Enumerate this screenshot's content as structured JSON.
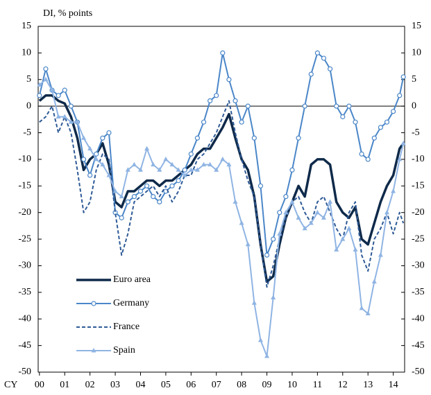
{
  "chart_data": {
    "type": "line",
    "y_label": "DI, % points",
    "x_label": "CY",
    "x": [
      2000,
      2000.25,
      2000.5,
      2000.75,
      2001,
      2001.25,
      2001.5,
      2001.75,
      2002,
      2002.25,
      2002.5,
      2002.75,
      2003,
      2003.25,
      2003.5,
      2003.75,
      2004,
      2004.25,
      2004.5,
      2004.75,
      2005,
      2005.25,
      2005.5,
      2005.75,
      2006,
      2006.25,
      2006.5,
      2006.75,
      2007,
      2007.25,
      2007.5,
      2007.75,
      2008,
      2008.25,
      2008.5,
      2008.75,
      2009,
      2009.25,
      2009.5,
      2009.75,
      2010,
      2010.25,
      2010.5,
      2010.75,
      2011,
      2011.25,
      2011.5,
      2011.75,
      2012,
      2012.25,
      2012.5,
      2012.75,
      2013,
      2013.25,
      2013.5,
      2013.75,
      2014,
      2014.25,
      2014.4
    ],
    "series": [
      {
        "name": "Euro area",
        "color": "#0f2a4a",
        "style": "solid",
        "marker": "none",
        "values": [
          1,
          2,
          2,
          1,
          0.5,
          -2,
          -6,
          -12,
          -10,
          -9,
          -7,
          -11,
          -18,
          -19,
          -16,
          -16,
          -15,
          -14,
          -14,
          -15,
          -14,
          -14,
          -13,
          -12,
          -11,
          -9,
          -8,
          -8,
          -6,
          -4,
          -1.5,
          -6,
          -10,
          -12,
          -17,
          -26,
          -33,
          -32,
          -26,
          -21,
          -18,
          -15,
          -17,
          -11,
          -10,
          -10,
          -11,
          -18,
          -20,
          -21,
          -19,
          -25,
          -26,
          -22,
          -18,
          -15,
          -13,
          -8,
          -7
        ]
      },
      {
        "name": "Germany",
        "color": "#4a86c8",
        "style": "solid",
        "marker": "circle",
        "values": [
          2,
          7,
          3,
          2,
          3,
          0,
          -3,
          -10,
          -13,
          -9,
          -6,
          -5,
          -20,
          -21,
          -18,
          -17,
          -16,
          -15,
          -17,
          -18,
          -16,
          -15,
          -14,
          -12,
          -9,
          -6,
          -3,
          1,
          2,
          10,
          5,
          1,
          -3,
          0,
          -6,
          -15,
          -28,
          -25,
          -20,
          -17,
          -12,
          -6,
          0,
          6,
          10,
          9,
          7,
          0,
          -2,
          0,
          -3,
          -9,
          -10,
          -6,
          -4,
          -3,
          -1,
          2,
          5.5
        ]
      },
      {
        "name": "France",
        "color": "#2e5a96",
        "style": "dashed",
        "marker": "none",
        "values": [
          -3,
          -2,
          0,
          -5,
          -2,
          -5,
          -12,
          -20,
          -18,
          -12,
          -9,
          -10,
          -20,
          -28,
          -24,
          -18,
          -17,
          -16,
          -15,
          -17,
          -15,
          -18,
          -16,
          -13,
          -13,
          -10,
          -9,
          -7,
          -5,
          -2,
          1,
          -5,
          -10,
          -14,
          -17,
          -26,
          -34,
          -30,
          -25,
          -21,
          -18,
          -17,
          -20,
          -22,
          -18,
          -17,
          -20,
          -23,
          -25,
          -20,
          -18,
          -28,
          -31,
          -25,
          -23,
          -20,
          -24,
          -20,
          -22
        ]
      },
      {
        "name": "Spain",
        "color": "#8fb4e3",
        "style": "solid",
        "marker": "triangle",
        "values": [
          4,
          5,
          3,
          -2,
          -2,
          -3,
          -3,
          -6,
          -8,
          -10,
          -11,
          -13,
          -16,
          -17,
          -12,
          -11,
          -12,
          -8,
          -11,
          -12,
          -10,
          -11,
          -12,
          -13,
          -12,
          -12,
          -11,
          -11,
          -12,
          -10,
          -11,
          -18,
          -22,
          -26,
          -37,
          -44,
          -47,
          -36,
          -24,
          -20,
          -18,
          -21,
          -23,
          -22,
          -20,
          -21,
          -18,
          -27,
          -25,
          -23,
          -27,
          -38,
          -39,
          -33,
          -28,
          -20,
          -16,
          -10,
          -7
        ]
      }
    ],
    "xlim": [
      1999.95,
      2014.45
    ],
    "xticks": [
      {
        "value": 2000,
        "label": "00"
      },
      {
        "value": 2001,
        "label": "01"
      },
      {
        "value": 2002,
        "label": "02"
      },
      {
        "value": 2003,
        "label": "03"
      },
      {
        "value": 2004,
        "label": "04"
      },
      {
        "value": 2005,
        "label": "05"
      },
      {
        "value": 2006,
        "label": "06"
      },
      {
        "value": 2007,
        "label": "07"
      },
      {
        "value": 2008,
        "label": "08"
      },
      {
        "value": 2009,
        "label": "09"
      },
      {
        "value": 2010,
        "label": "10"
      },
      {
        "value": 2011,
        "label": "11"
      },
      {
        "value": 2012,
        "label": "12"
      },
      {
        "value": 2013,
        "label": "13"
      },
      {
        "value": 2014,
        "label": "14"
      }
    ],
    "ylim": [
      -50,
      15
    ],
    "yticks": [
      -50,
      -45,
      -40,
      -35,
      -30,
      -25,
      -20,
      -15,
      -10,
      -5,
      0,
      5,
      10,
      15
    ],
    "legend": "lower left"
  }
}
